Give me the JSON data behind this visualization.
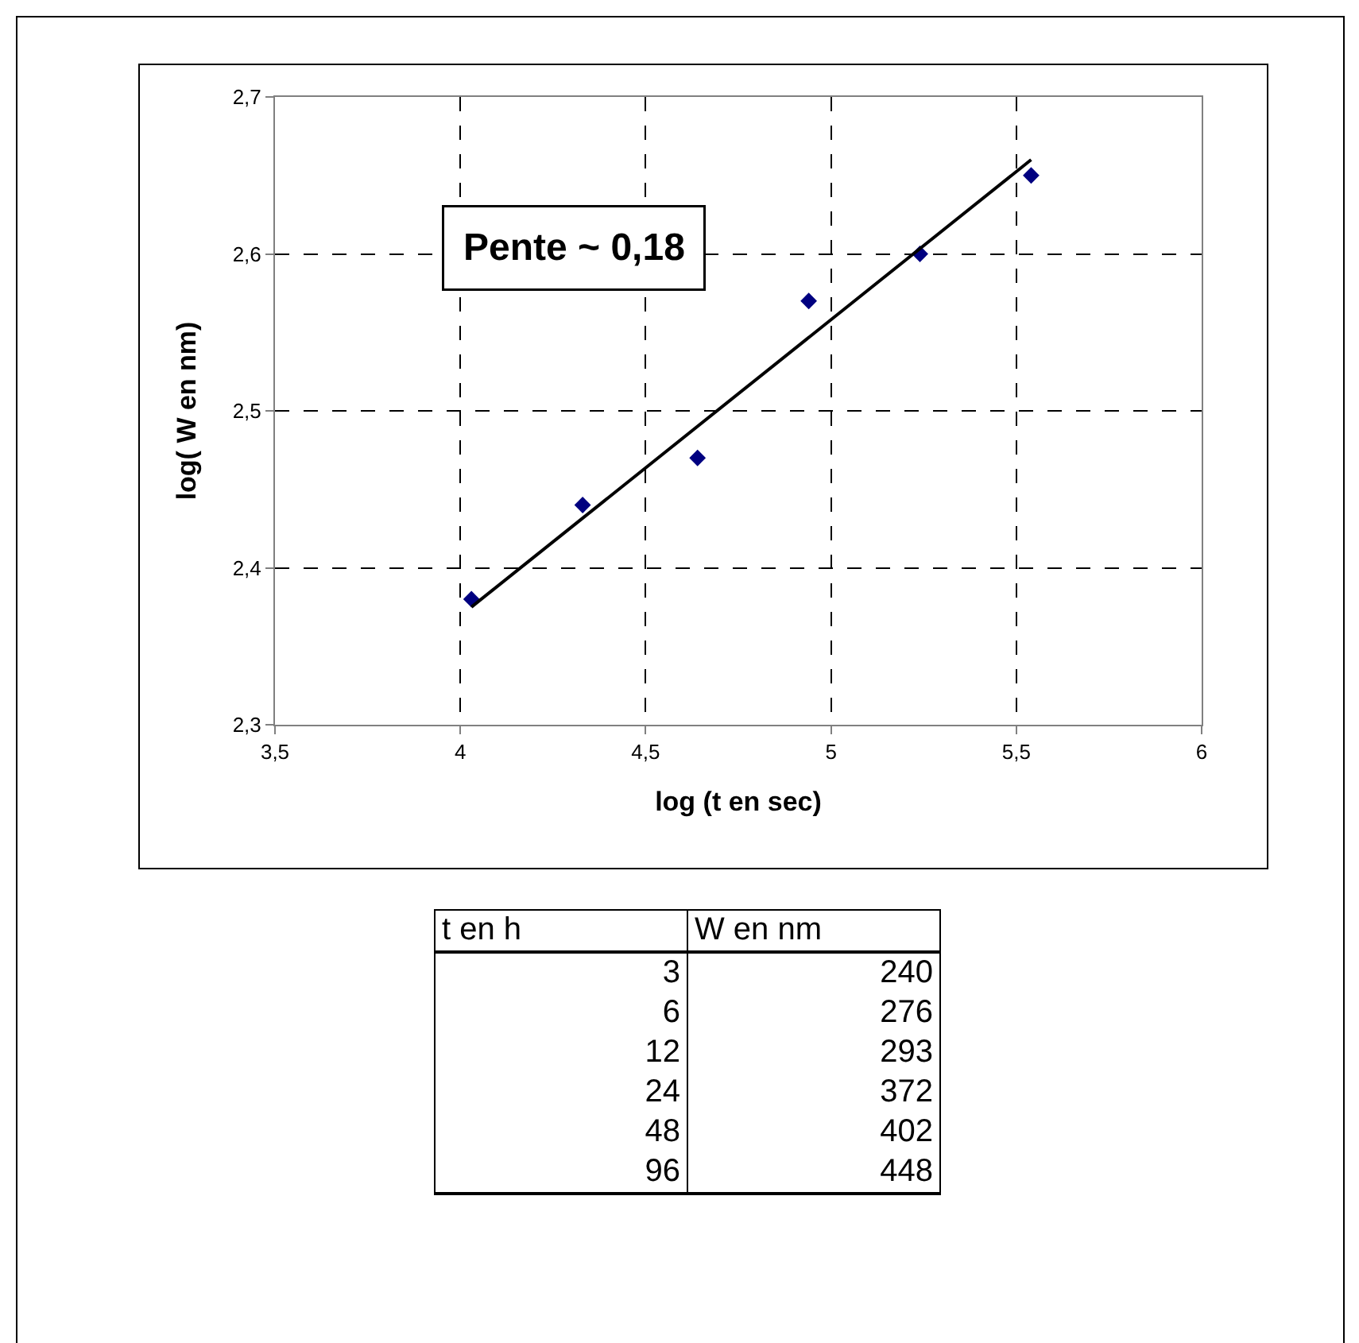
{
  "chart_data": [
    {
      "type": "scatter",
      "xlabel": "log (t en sec)",
      "ylabel": "log( W en nm)",
      "annotations": [
        "Pente ~ 0,18"
      ],
      "xlim": [
        3.5,
        6
      ],
      "xticks": [
        {
          "value": 3.5,
          "label": "3,5"
        },
        4,
        {
          "value": 4.5,
          "label": "4,5"
        },
        5,
        {
          "value": 5.5,
          "label": "5,5"
        },
        6
      ],
      "ylim": [
        2.3,
        2.7
      ],
      "yticks": [
        {
          "value": 2.3,
          "label": "2,3"
        },
        {
          "value": 2.4,
          "label": "2,4"
        },
        {
          "value": 2.5,
          "label": "2,5"
        },
        {
          "value": 2.6,
          "label": "2,6"
        },
        {
          "value": 2.7,
          "label": "2,7"
        }
      ],
      "grid": true,
      "series": [
        {
          "type": "scatter",
          "marker": "diamond",
          "color": "#000080",
          "x": [
            4.03,
            4.33,
            4.64,
            4.94,
            5.24,
            5.54
          ],
          "values": [
            2.38,
            2.44,
            2.47,
            2.57,
            2.6,
            2.65
          ]
        },
        {
          "type": "line",
          "marker": "none",
          "color": "#000000",
          "line_style": "solid",
          "x": [
            4.03,
            5.54
          ],
          "values": [
            2.375,
            2.66
          ]
        }
      ]
    },
    {
      "type": "other",
      "xlabel": "t en h",
      "ylabel": "W en nm",
      "data_labels": true,
      "categories": [
        "3",
        "6",
        "12",
        "24",
        "48",
        "96"
      ],
      "values": [
        240,
        276,
        293,
        372,
        402,
        448
      ]
    }
  ]
}
